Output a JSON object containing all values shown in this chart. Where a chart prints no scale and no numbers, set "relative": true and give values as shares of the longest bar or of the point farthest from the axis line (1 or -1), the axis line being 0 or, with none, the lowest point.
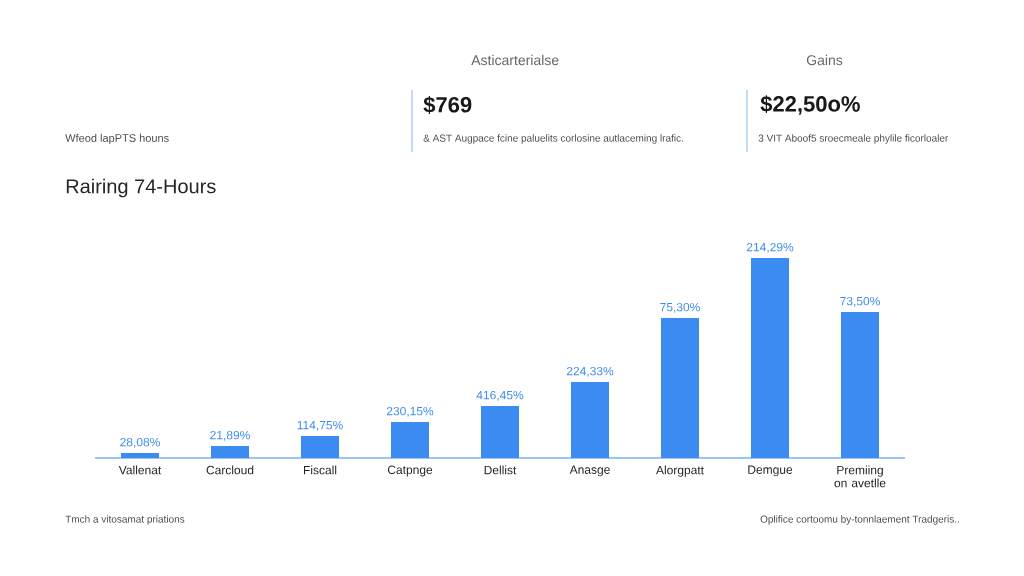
{
  "chart_data": {
    "type": "bar",
    "title": "Rairing 74-Hours",
    "subtitle": "Wfeod lapPTS houns",
    "categories": [
      "Vallenat",
      "Carcloud",
      "Fiscall",
      "Catpnge",
      "Dellist",
      "Anasge",
      "Alorgpatt",
      "Demgue",
      "Premiing on avetlle"
    ],
    "values": [
      0.025,
      0.06,
      0.11,
      0.18,
      0.26,
      0.38,
      0.7,
      1,
      0.73
    ],
    "color": "#3b8bf0",
    "relative": true,
    "annotations": [
      "Asticarterialse",
      "$769",
      "& AST Augpace fcine paluelits corlosine autlaceming lrafic.",
      "Gains",
      "$22,50o%",
      "3 VIT Aboof5 sroecmeale phylile ficorloaler",
      "Tmch a vitosamat priations",
      "Oplifice cortoomu by-tonnlaement Tradgeris..",
      {
        "text": "28,08%",
        "x": "Vallenat",
        "y": 0.025
      },
      {
        "text": "21,89%",
        "x": "Carcloud",
        "y": 0.06
      },
      {
        "text": "114,75%",
        "x": "Fiscall",
        "y": 0.11
      },
      {
        "text": "230,15%",
        "x": "Catpnge",
        "y": 0.18
      },
      {
        "text": "416,45%",
        "x": "Dellist",
        "y": 0.26
      },
      {
        "text": "224,33%",
        "x": "Anasge",
        "y": 0.38
      },
      {
        "text": "75,30%",
        "x": "Alorgpatt",
        "y": 0.7
      },
      {
        "text": "214,29%",
        "x": "Demgue",
        "y": 1
      },
      {
        "text": "73,50%",
        "x": "Premiing on avetlle",
        "y": 0.73
      }
    ]
  }
}
